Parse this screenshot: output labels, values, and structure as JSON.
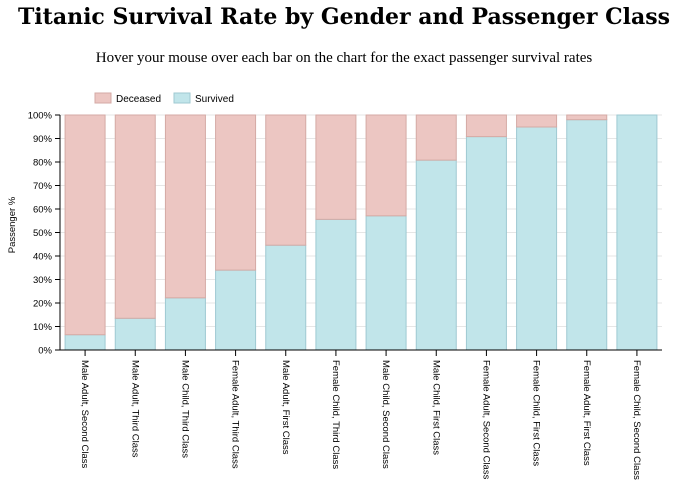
{
  "header": {
    "title": "Titanic Survival Rate by Gender and Passenger Class",
    "subtitle": "Hover your mouse over each bar on the chart for the exact passenger survival rates"
  },
  "colors": {
    "survived": "#c1e5ea",
    "deceased": "#ecc6c2"
  },
  "chart_data": {
    "type": "bar",
    "stacked": true,
    "title": "Titanic Survival Rate by Gender and Passenger Class",
    "xlabel": "",
    "ylabel": "Passenger %",
    "ylim": [
      0,
      100
    ],
    "yticks": [
      "0%",
      "10%",
      "20%",
      "30%",
      "40%",
      "50%",
      "60%",
      "70%",
      "80%",
      "90%",
      "100%"
    ],
    "legend": {
      "position": "top-left",
      "entries": [
        "Deceased",
        "Survived"
      ]
    },
    "categories": [
      "Male Adult, Second Class",
      "Male Adult, Third Class",
      "Male Child, Third Class",
      "Female Adult, Third Class",
      "Male Adult, First Class",
      "Female Child, Third Class",
      "Male Child, Second Class",
      "Male Child, First Class",
      "Female Adult, Second Class",
      "Female Child, First Class",
      "Female Adult, First Class",
      "Female Child, Second Class"
    ],
    "series": [
      {
        "name": "Survived",
        "values": [
          6.5,
          13.5,
          22.2,
          34.0,
          44.6,
          55.6,
          57.1,
          80.8,
          90.8,
          94.9,
          98.0,
          100.0
        ]
      },
      {
        "name": "Deceased",
        "values": [
          93.5,
          86.5,
          77.8,
          66.0,
          55.4,
          44.4,
          42.9,
          19.2,
          9.2,
          5.1,
          2.0,
          0.0
        ]
      }
    ],
    "grid": true
  }
}
